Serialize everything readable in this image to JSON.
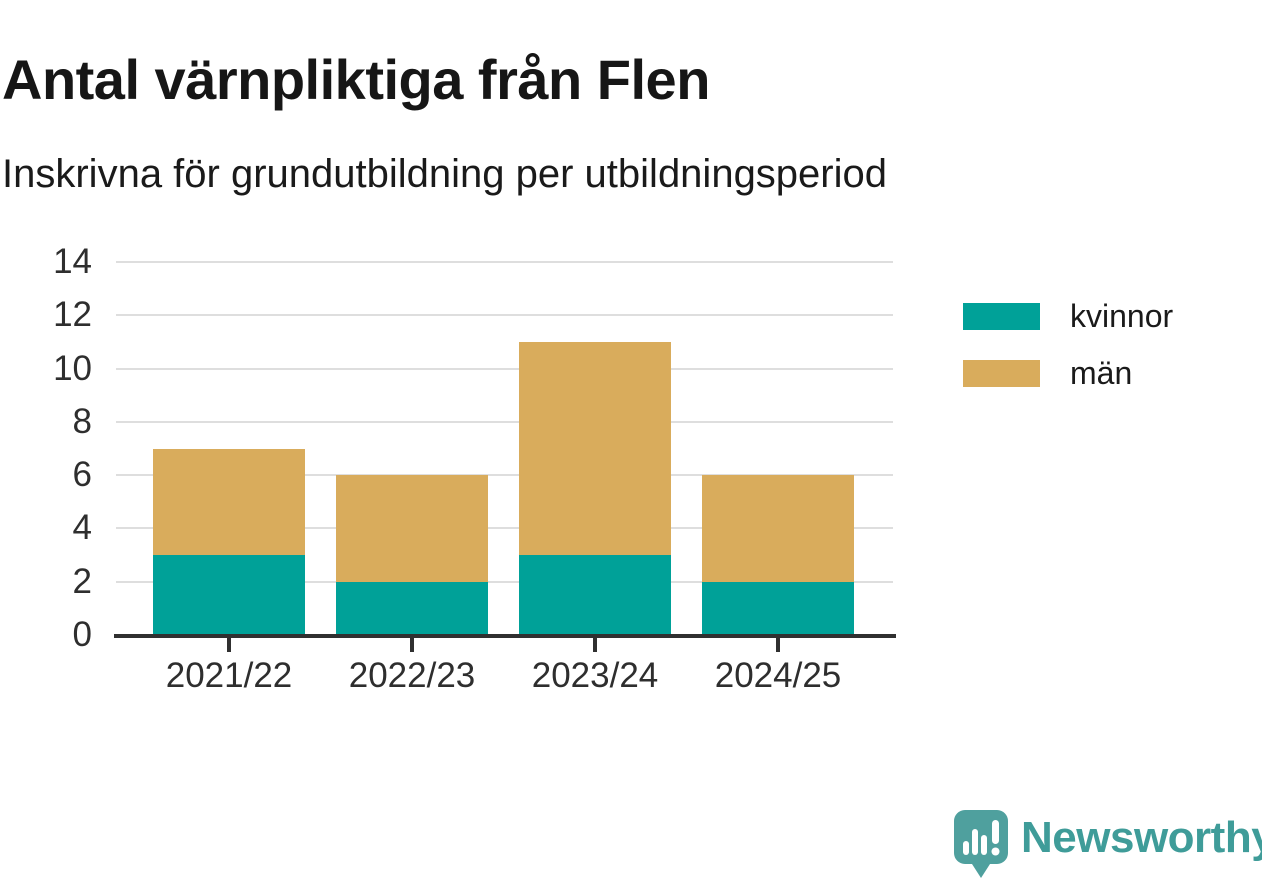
{
  "header": {
    "title": "Antal värnpliktiga från Flen",
    "subtitle": "Inskrivna för grundutbildning per utbildningsperiod"
  },
  "chart_data": {
    "type": "bar",
    "stacked": true,
    "title": "Antal värnpliktiga från Flen",
    "subtitle": "Inskrivna för grundutbildning per utbildningsperiod",
    "categories": [
      "2021/22",
      "2022/23",
      "2023/24",
      "2024/25"
    ],
    "series": [
      {
        "name": "kvinnor",
        "color": "#00a198",
        "values": [
          3,
          2,
          3,
          2
        ]
      },
      {
        "name": "män",
        "color": "#d9ac5c",
        "values": [
          4,
          4,
          8,
          4
        ]
      }
    ],
    "totals": [
      7,
      6,
      11,
      6
    ],
    "xlabel": "",
    "ylabel": "",
    "ylim": [
      0,
      14
    ],
    "yticks": [
      0,
      2,
      4,
      6,
      8,
      10,
      12,
      14
    ],
    "grid": "horizontal-only",
    "legend_position": "top-right"
  },
  "legend": {
    "items": [
      {
        "label": "kvinnor",
        "color": "#00a198"
      },
      {
        "label": "män",
        "color": "#d9ac5c"
      }
    ]
  },
  "footer": {
    "brand": "Newsworthy",
    "brand_color": "#3f9c99",
    "logo_icon": "newsworthy-speech-bubble-bar-chart-icon"
  }
}
